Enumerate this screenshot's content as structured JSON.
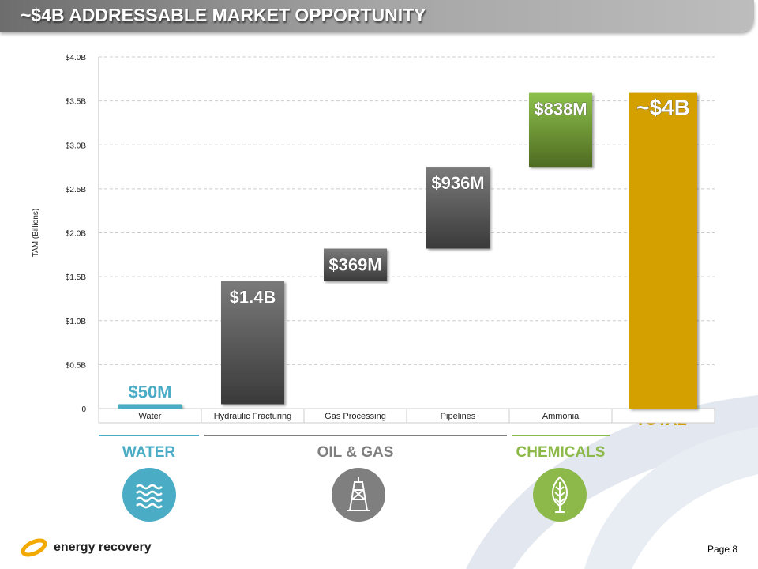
{
  "header": {
    "title": "~$4B ADDRESSABLE MARKET OPPORTUNITY"
  },
  "chart_data": {
    "type": "bar",
    "subtype": "waterfall",
    "ylabel": "TAM (Billions)",
    "ylim": [
      0,
      4.0
    ],
    "yticks": [
      "0",
      "$0.5B",
      "$1.0B",
      "$1.5B",
      "$2.0B",
      "$2.5B",
      "$3.0B",
      "$3.5B",
      "$4.0B"
    ],
    "categories": [
      "Water",
      "Hydraulic Fracturing",
      "Gas Processing",
      "Pipelines",
      "Ammonia",
      ""
    ],
    "bars": [
      {
        "category": "Water",
        "start": 0,
        "end": 0.05,
        "label": "$50M",
        "color": "#4bacc6"
      },
      {
        "category": "Hydraulic Fracturing",
        "start": 0.05,
        "end": 1.45,
        "label": "$1.4B",
        "color": "#555555"
      },
      {
        "category": "Gas Processing",
        "start": 1.45,
        "end": 1.82,
        "label": "$369M",
        "color": "#555555"
      },
      {
        "category": "Pipelines",
        "start": 1.82,
        "end": 2.75,
        "label": "$936M",
        "color": "#555555"
      },
      {
        "category": "Ammonia",
        "start": 2.75,
        "end": 3.59,
        "label": "$838M",
        "color": "#77933c"
      },
      {
        "category": "TOTAL",
        "start": 0,
        "end": 3.59,
        "label": "~$4B",
        "color": "#d4a000"
      }
    ],
    "grid": true
  },
  "total_label": "TOTAL",
  "segments": [
    {
      "label": "WATER",
      "color": "#4bacc6"
    },
    {
      "label": "OIL & GAS",
      "color": "#7f7f7f"
    },
    {
      "label": "CHEMICALS",
      "color": "#8db94a"
    }
  ],
  "footer": {
    "logo": "energy recovery",
    "page": "Page  8"
  }
}
